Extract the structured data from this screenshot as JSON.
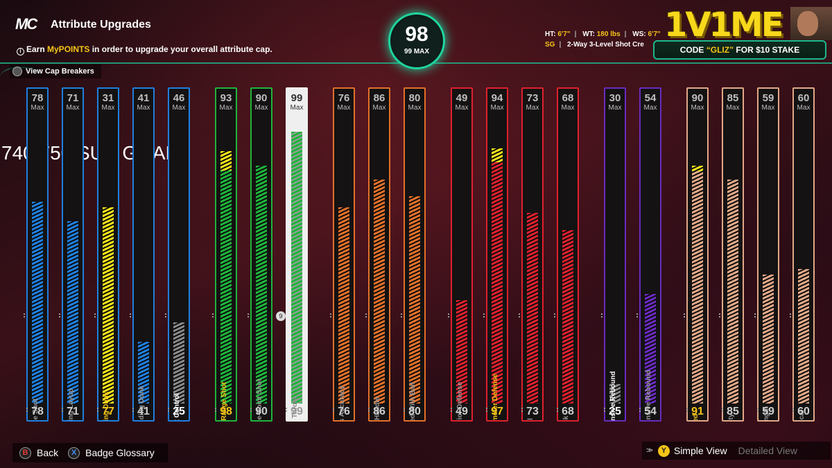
{
  "header": {
    "logo": "MC",
    "title": "Attribute Upgrades",
    "subtitle_pre": "Earn ",
    "subtitle_hl": "MyPOINTS",
    "subtitle_post": " in order to upgrade your overall attribute cap.",
    "cap_breakers": "View Cap Breakers",
    "info_icon": "i"
  },
  "overall": {
    "value": "98",
    "max": "99 MAX"
  },
  "player": {
    "ht_label": "HT:",
    "ht": "6'7\"",
    "wt_label": "WT:",
    "wt": "180 lbs",
    "ws_label": "WS:",
    "ws": "6'7\"",
    "position": "SG",
    "build": "2-Way 3-Level Shot Cre"
  },
  "sponsor": {
    "logo": "1V1ME",
    "code_pre": "CODE ",
    "code_hl": "“GLIZ”",
    "code_post": " FOR $10 STAKE"
  },
  "overlay": {
    "sub_goal": "740/750 SUB GOAL"
  },
  "max_label": "Max",
  "lock_icon": "9",
  "colors": {
    "blue": "#1f7fe0",
    "green": "#1fb43c",
    "orange": "#e2702a",
    "red": "#e0202e",
    "purple": "#6a2bc0",
    "tan": "#e2a888",
    "yellow": "#f5e31a",
    "gray": "#8a8a8a",
    "accent": "#1fd6a0"
  },
  "attributes": [
    {
      "name": "Close Shot",
      "max": "78",
      "current": "78",
      "group": "blue",
      "fill": 0.72,
      "upgrade": 0
    },
    {
      "name": "Driving Layup",
      "max": "71",
      "current": "71",
      "group": "blue",
      "fill": 0.65,
      "upgrade": 0
    },
    {
      "name": "Driving Dunk",
      "max": "31",
      "current": "77",
      "group": "blue",
      "fill": 0.7,
      "upgrade": 0.06,
      "fill_color": "yellow",
      "name_style": "y",
      "cur_style": "y"
    },
    {
      "name": "Standing Dunk",
      "max": "41",
      "current": "41",
      "group": "blue",
      "fill": 0.22,
      "upgrade": 0
    },
    {
      "name": "Post Control",
      "max": "46",
      "current": "25",
      "group": "blue",
      "fill": 0.29,
      "upgrade": 0,
      "fill_color": "gray",
      "name_style": "w",
      "cur_style": "w"
    },
    {
      "name": "Mid-Range Shot",
      "max": "93",
      "current": "98",
      "group": "green",
      "fill": 0.9,
      "upgrade": 0.07,
      "name_style": "y",
      "cur_style": "y"
    },
    {
      "name": "Three-Point Shot",
      "max": "90",
      "current": "90",
      "group": "green",
      "fill": 0.85,
      "upgrade": 0
    },
    {
      "name": "Free Throw",
      "max": "99",
      "current": "99",
      "group": "green",
      "fill": 0.97,
      "upgrade": 0,
      "selected": true
    },
    {
      "name": "Pass Accuracy",
      "max": "76",
      "current": "76",
      "group": "orange",
      "fill": 0.7,
      "upgrade": 0
    },
    {
      "name": "Ball Handle",
      "max": "86",
      "current": "86",
      "group": "orange",
      "fill": 0.8,
      "upgrade": 0
    },
    {
      "name": "Speed With Ball",
      "max": "80",
      "current": "80",
      "group": "orange",
      "fill": 0.74,
      "upgrade": 0
    },
    {
      "name": "Interior Defense",
      "max": "49",
      "current": "49",
      "group": "red",
      "fill": 0.37,
      "upgrade": 0
    },
    {
      "name": "Perimeter Defense",
      "max": "94",
      "current": "97",
      "group": "red",
      "fill": 0.91,
      "upgrade": 0.05,
      "name_style": "y",
      "cur_style": "y"
    },
    {
      "name": "Steal",
      "max": "73",
      "current": "73",
      "group": "red",
      "fill": 0.68,
      "upgrade": 0
    },
    {
      "name": "Block",
      "max": "68",
      "current": "68",
      "group": "red",
      "fill": 0.62,
      "upgrade": 0
    },
    {
      "name": "Offensive Rebound",
      "max": "30",
      "current": "25",
      "group": "purple",
      "fill": 0.07,
      "upgrade": 0,
      "fill_color": "gray",
      "name_style": "w",
      "cur_style": "w"
    },
    {
      "name": "Defensive Rebound",
      "max": "54",
      "current": "54",
      "group": "purple",
      "fill": 0.39,
      "upgrade": 0
    },
    {
      "name": "Speed",
      "max": "90",
      "current": "91",
      "group": "tan",
      "fill": 0.85,
      "upgrade": 0.02,
      "name_style": "y",
      "cur_style": "y"
    },
    {
      "name": "Agility",
      "max": "85",
      "current": "85",
      "group": "tan",
      "fill": 0.8,
      "upgrade": 0
    },
    {
      "name": "Strength",
      "max": "59",
      "current": "59",
      "group": "tan",
      "fill": 0.46,
      "upgrade": 0
    },
    {
      "name": "Vertical",
      "max": "60",
      "current": "60",
      "group": "tan",
      "fill": 0.48,
      "upgrade": 0
    }
  ],
  "footer": {
    "back_btn": "B",
    "back": "Back",
    "glossary_btn": "X",
    "glossary": "Badge Glossary",
    "view_btn": "Y",
    "simple": "Simple View",
    "detailed": "Detailed View",
    "chevrons": ">>"
  }
}
